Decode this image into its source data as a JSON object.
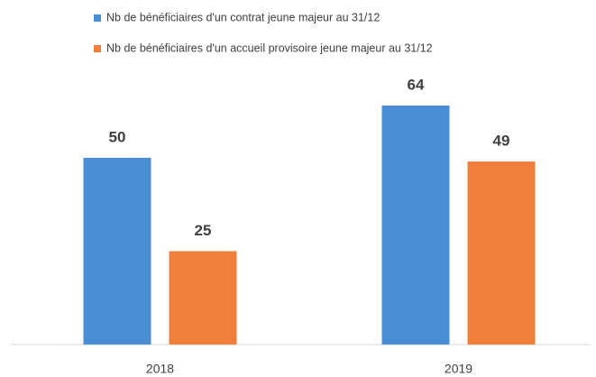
{
  "chart_data": {
    "type": "bar",
    "categories": [
      "2018",
      "2019"
    ],
    "series": [
      {
        "name": "Nb de bénéficiaires d'un contrat jeune majeur au 31/12",
        "color": "#4a8fd4",
        "values": [
          50,
          64
        ]
      },
      {
        "name": "Nb de bénéficiaires d'un accueil provisoire jeune majeur au 31/12",
        "color": "#f07f3c",
        "values": [
          25,
          49
        ]
      }
    ]
  }
}
